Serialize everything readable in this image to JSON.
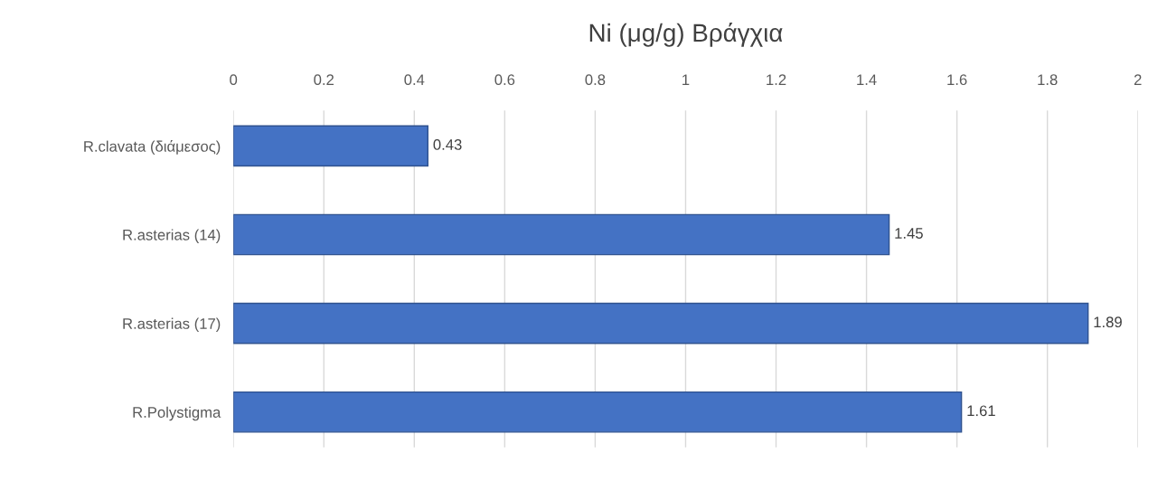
{
  "chart_data": {
    "type": "bar",
    "orientation": "horizontal",
    "title": "Ni (μg/g) Βράγχια",
    "categories": [
      "R.clavata (διάμεσος)",
      "R.asterias (14)",
      "R.asterias (17)",
      "R.Polystigma"
    ],
    "values": [
      0.43,
      1.45,
      1.89,
      1.61
    ],
    "color": "#4472c4",
    "xlim": [
      0,
      2
    ],
    "xticks": [
      0,
      0.2,
      0.4,
      0.6,
      0.8,
      1,
      1.2,
      1.4,
      1.6,
      1.8,
      2
    ],
    "grid": "x",
    "data_labels": true
  }
}
